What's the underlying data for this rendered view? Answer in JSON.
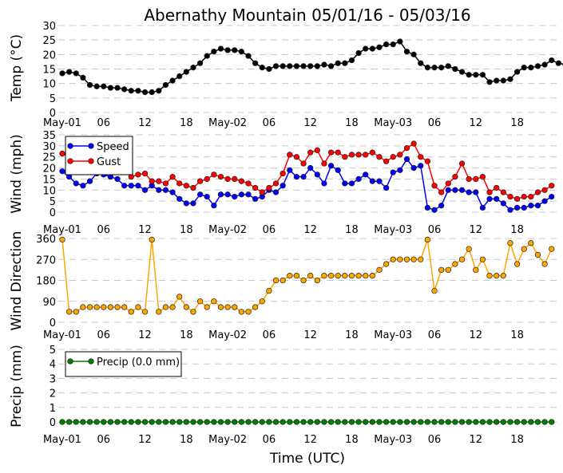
{
  "title": "Abernathy Mountain 05/01/16 - 05/03/16",
  "xlabel": "Time (UTC)",
  "x_tick_labels": [
    "May-01",
    "06",
    "12",
    "18",
    "May-02",
    "06",
    "12",
    "18",
    "May-03",
    "06",
    "12",
    "18"
  ],
  "chart_data": [
    {
      "type": "line",
      "ylabel": "Temp (°C)",
      "ylim": [
        0,
        30
      ],
      "yticks": [
        0,
        5,
        10,
        15,
        20,
        25,
        30
      ],
      "grid": true,
      "series": [
        {
          "color": "#000000",
          "values": [
            13.5,
            14,
            13.5,
            12,
            9.5,
            9,
            9,
            8.5,
            8.5,
            8,
            7.5,
            7.5,
            7,
            7,
            7.5,
            9.5,
            11,
            12.5,
            14,
            15.5,
            17,
            19.5,
            21,
            22,
            21.5,
            21.5,
            21,
            19.5,
            17,
            15.5,
            15,
            16,
            16,
            16,
            16,
            16,
            16,
            16,
            16.5,
            16,
            17,
            17,
            18,
            20.5,
            22,
            22,
            22.5,
            23.5,
            23.5,
            24.5,
            21,
            20,
            17,
            15.5,
            15.5,
            15.5,
            16,
            15,
            14,
            13,
            13,
            13,
            10.5,
            11,
            11,
            11.5,
            14,
            15.5,
            15.5,
            16,
            16.5,
            18,
            17,
            16.5
          ]
        }
      ]
    },
    {
      "type": "line",
      "ylabel": "Wind (mph)",
      "ylim": [
        0,
        35
      ],
      "yticks": [
        0,
        5,
        10,
        15,
        20,
        25,
        30,
        35
      ],
      "grid": true,
      "legend": "top-left",
      "series": [
        {
          "name": "Speed",
          "color": "#0000ff",
          "values": [
            18.5,
            16,
            13,
            12,
            14,
            17.5,
            17,
            16,
            15,
            12,
            12,
            12,
            10,
            12,
            10,
            10,
            9,
            6,
            4,
            4,
            8,
            7,
            3,
            8,
            8,
            7,
            8,
            8,
            6,
            7,
            10,
            9,
            12,
            19,
            16,
            16,
            20,
            17,
            13,
            21,
            19,
            13,
            13,
            15,
            17,
            14,
            14,
            11,
            18,
            19,
            24,
            20,
            21,
            2,
            1,
            3,
            10,
            10,
            10,
            9,
            9,
            2,
            6,
            6,
            4,
            1,
            2,
            2,
            3,
            3,
            5,
            7
          ]
        },
        {
          "name": "Gust",
          "color": "#ff0000",
          "values": [
            26.5,
            25,
            24,
            23,
            22,
            22,
            21,
            21,
            20,
            19,
            16,
            17,
            17.5,
            14,
            14,
            13,
            16,
            13,
            12,
            11,
            14,
            15,
            17,
            16,
            15,
            15,
            14,
            13,
            11,
            9,
            11,
            13,
            17.5,
            26,
            25,
            22,
            27,
            28,
            22,
            27,
            27,
            25,
            26,
            26,
            26,
            27,
            25,
            23,
            25,
            26,
            29,
            31,
            25,
            23,
            12,
            9,
            13,
            16,
            22,
            15,
            15,
            16,
            9,
            11,
            9,
            7,
            6,
            7,
            7,
            9,
            10,
            12
          ]
        }
      ]
    },
    {
      "type": "line",
      "ylabel": "Wind Direction",
      "ylim": [
        0,
        360
      ],
      "yticks": [
        0,
        90,
        180,
        270,
        360
      ],
      "grid": true,
      "series": [
        {
          "color": "#ffa500",
          "values": [
            355,
            45,
            45,
            65,
            65,
            65,
            65,
            65,
            65,
            65,
            45,
            65,
            45,
            355,
            45,
            65,
            65,
            110,
            65,
            45,
            90,
            65,
            90,
            65,
            65,
            65,
            45,
            45,
            65,
            90,
            135,
            180,
            180,
            200,
            200,
            180,
            200,
            180,
            200,
            200,
            200,
            200,
            200,
            200,
            200,
            200,
            225,
            250,
            270,
            270,
            270,
            270,
            270,
            355,
            135,
            225,
            225,
            250,
            270,
            315,
            225,
            270,
            200,
            200,
            200,
            340,
            250,
            315,
            340,
            290,
            250,
            315
          ]
        }
      ]
    },
    {
      "type": "line",
      "ylabel": "Precip (mm)",
      "ylim": [
        0,
        5
      ],
      "yticks": [
        0,
        1,
        2,
        3,
        4,
        5
      ],
      "grid": true,
      "legend": "top-left",
      "series": [
        {
          "name": "Precip (0.0 mm)",
          "color": "#008000",
          "values": [
            0,
            0,
            0,
            0,
            0,
            0,
            0,
            0,
            0,
            0,
            0,
            0,
            0,
            0,
            0,
            0,
            0,
            0,
            0,
            0,
            0,
            0,
            0,
            0,
            0,
            0,
            0,
            0,
            0,
            0,
            0,
            0,
            0,
            0,
            0,
            0,
            0,
            0,
            0,
            0,
            0,
            0,
            0,
            0,
            0,
            0,
            0,
            0,
            0,
            0,
            0,
            0,
            0,
            0,
            0,
            0,
            0,
            0,
            0,
            0,
            0,
            0,
            0,
            0,
            0,
            0,
            0,
            0,
            0,
            0,
            0,
            0
          ]
        }
      ]
    }
  ]
}
